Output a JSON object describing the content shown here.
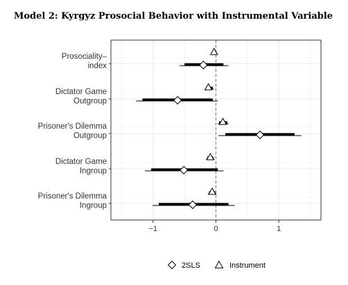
{
  "chart_data": {
    "type": "scatter",
    "title": "Model 2: Kyrgyz Prosocial Behavior with Instrumental Variable",
    "xlabel": "",
    "ylabel": "",
    "xlim": [
      -1.67,
      1.67
    ],
    "xticks": [
      "-1",
      "0",
      "1"
    ],
    "reference_line_x": 0,
    "grid": true,
    "legend_position": "bottom",
    "categories": [
      [
        "Prosociality–",
        "index"
      ],
      [
        "Dictator Game",
        "Outgroup"
      ],
      [
        "Prisoner's Dilemma",
        "Outgroup"
      ],
      [
        "Dictator Game",
        "Ingroup"
      ],
      [
        "Prisoner's Dilemma",
        "Ingroup"
      ]
    ],
    "series": [
      {
        "name": "2SLS",
        "marker": "diamond",
        "points": [
          {
            "est": -0.2,
            "ci90": [
              -0.5,
              0.12
            ],
            "ci95": [
              -0.58,
              0.2
            ]
          },
          {
            "est": -0.61,
            "ci90": [
              -1.17,
              -0.05
            ],
            "ci95": [
              -1.27,
              0.03
            ]
          },
          {
            "est": 0.7,
            "ci90": [
              0.15,
              1.25
            ],
            "ci95": [
              0.04,
              1.36
            ]
          },
          {
            "est": -0.51,
            "ci90": [
              -1.03,
              0.03
            ],
            "ci95": [
              -1.13,
              0.12
            ]
          },
          {
            "est": -0.37,
            "ci90": [
              -0.91,
              0.2
            ],
            "ci95": [
              -1.01,
              0.3
            ]
          }
        ]
      },
      {
        "name": "Instrument",
        "marker": "triangle",
        "points": [
          {
            "est": -0.03,
            "ci90": [
              -0.06,
              0.01
            ],
            "ci95": [
              -0.08,
              0.03
            ]
          },
          {
            "est": -0.12,
            "ci90": [
              -0.16,
              -0.05
            ],
            "ci95": [
              -0.18,
              -0.03
            ]
          },
          {
            "est": 0.11,
            "ci90": [
              0.05,
              0.18
            ],
            "ci95": [
              0.03,
              0.2
            ]
          },
          {
            "est": -0.09,
            "ci90": [
              -0.14,
              -0.04
            ],
            "ci95": [
              -0.16,
              -0.02
            ]
          },
          {
            "est": -0.06,
            "ci90": [
              -0.11,
              -0.01
            ],
            "ci95": [
              -0.13,
              0.01
            ]
          }
        ]
      }
    ],
    "colors": {
      "axis": "#333333",
      "grid": "#ebebeb",
      "ref_line": "#777777",
      "mark": "#000000"
    }
  }
}
